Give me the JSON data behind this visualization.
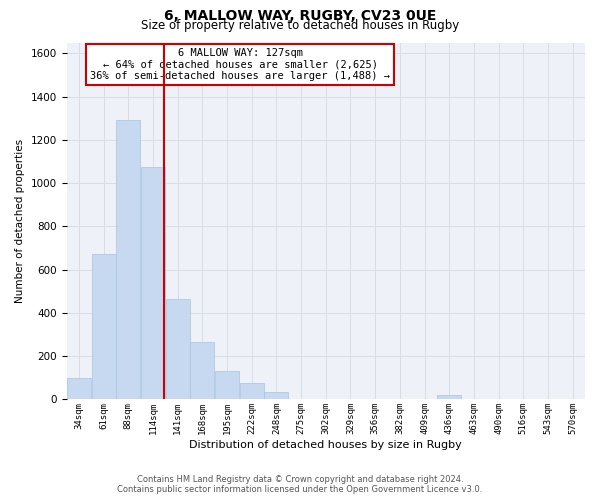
{
  "title": "6, MALLOW WAY, RUGBY, CV23 0UE",
  "subtitle": "Size of property relative to detached houses in Rugby",
  "xlabel": "Distribution of detached houses by size in Rugby",
  "ylabel": "Number of detached properties",
  "bar_color": "#c6d9f0",
  "bar_edge_color": "#a8c4e0",
  "vline_x": 127,
  "vline_color": "#cc0000",
  "annotation_line1": "6 MALLOW WAY: 127sqm",
  "annotation_line2": "← 64% of detached houses are smaller (2,625)",
  "annotation_line3": "36% of semi-detached houses are larger (1,488) →",
  "annotation_box_color": "#ffffff",
  "annotation_box_edge": "#cc0000",
  "categories": [
    "34sqm",
    "61sqm",
    "88sqm",
    "114sqm",
    "141sqm",
    "168sqm",
    "195sqm",
    "222sqm",
    "248sqm",
    "275sqm",
    "302sqm",
    "329sqm",
    "356sqm",
    "382sqm",
    "409sqm",
    "436sqm",
    "463sqm",
    "490sqm",
    "516sqm",
    "543sqm",
    "570sqm"
  ],
  "bin_edges": [
    20.5,
    47.5,
    74.5,
    101.5,
    128.5,
    155.5,
    182.5,
    209.5,
    236.5,
    263.5,
    290.5,
    317.5,
    344.5,
    371.5,
    398.5,
    425.5,
    452.5,
    479.5,
    506.5,
    533.5,
    560.5,
    587.5
  ],
  "values": [
    100,
    670,
    1290,
    1075,
    465,
    265,
    130,
    75,
    35,
    0,
    0,
    0,
    0,
    0,
    0,
    20,
    0,
    0,
    0,
    0,
    0
  ],
  "ylim": [
    0,
    1650
  ],
  "yticks": [
    0,
    200,
    400,
    600,
    800,
    1000,
    1200,
    1400,
    1600
  ],
  "footer_line1": "Contains HM Land Registry data © Crown copyright and database right 2024.",
  "footer_line2": "Contains public sector information licensed under the Open Government Licence v3.0.",
  "bg_color": "#ffffff",
  "plot_bg_color": "#eef2f8",
  "grid_color": "#d8dde8"
}
